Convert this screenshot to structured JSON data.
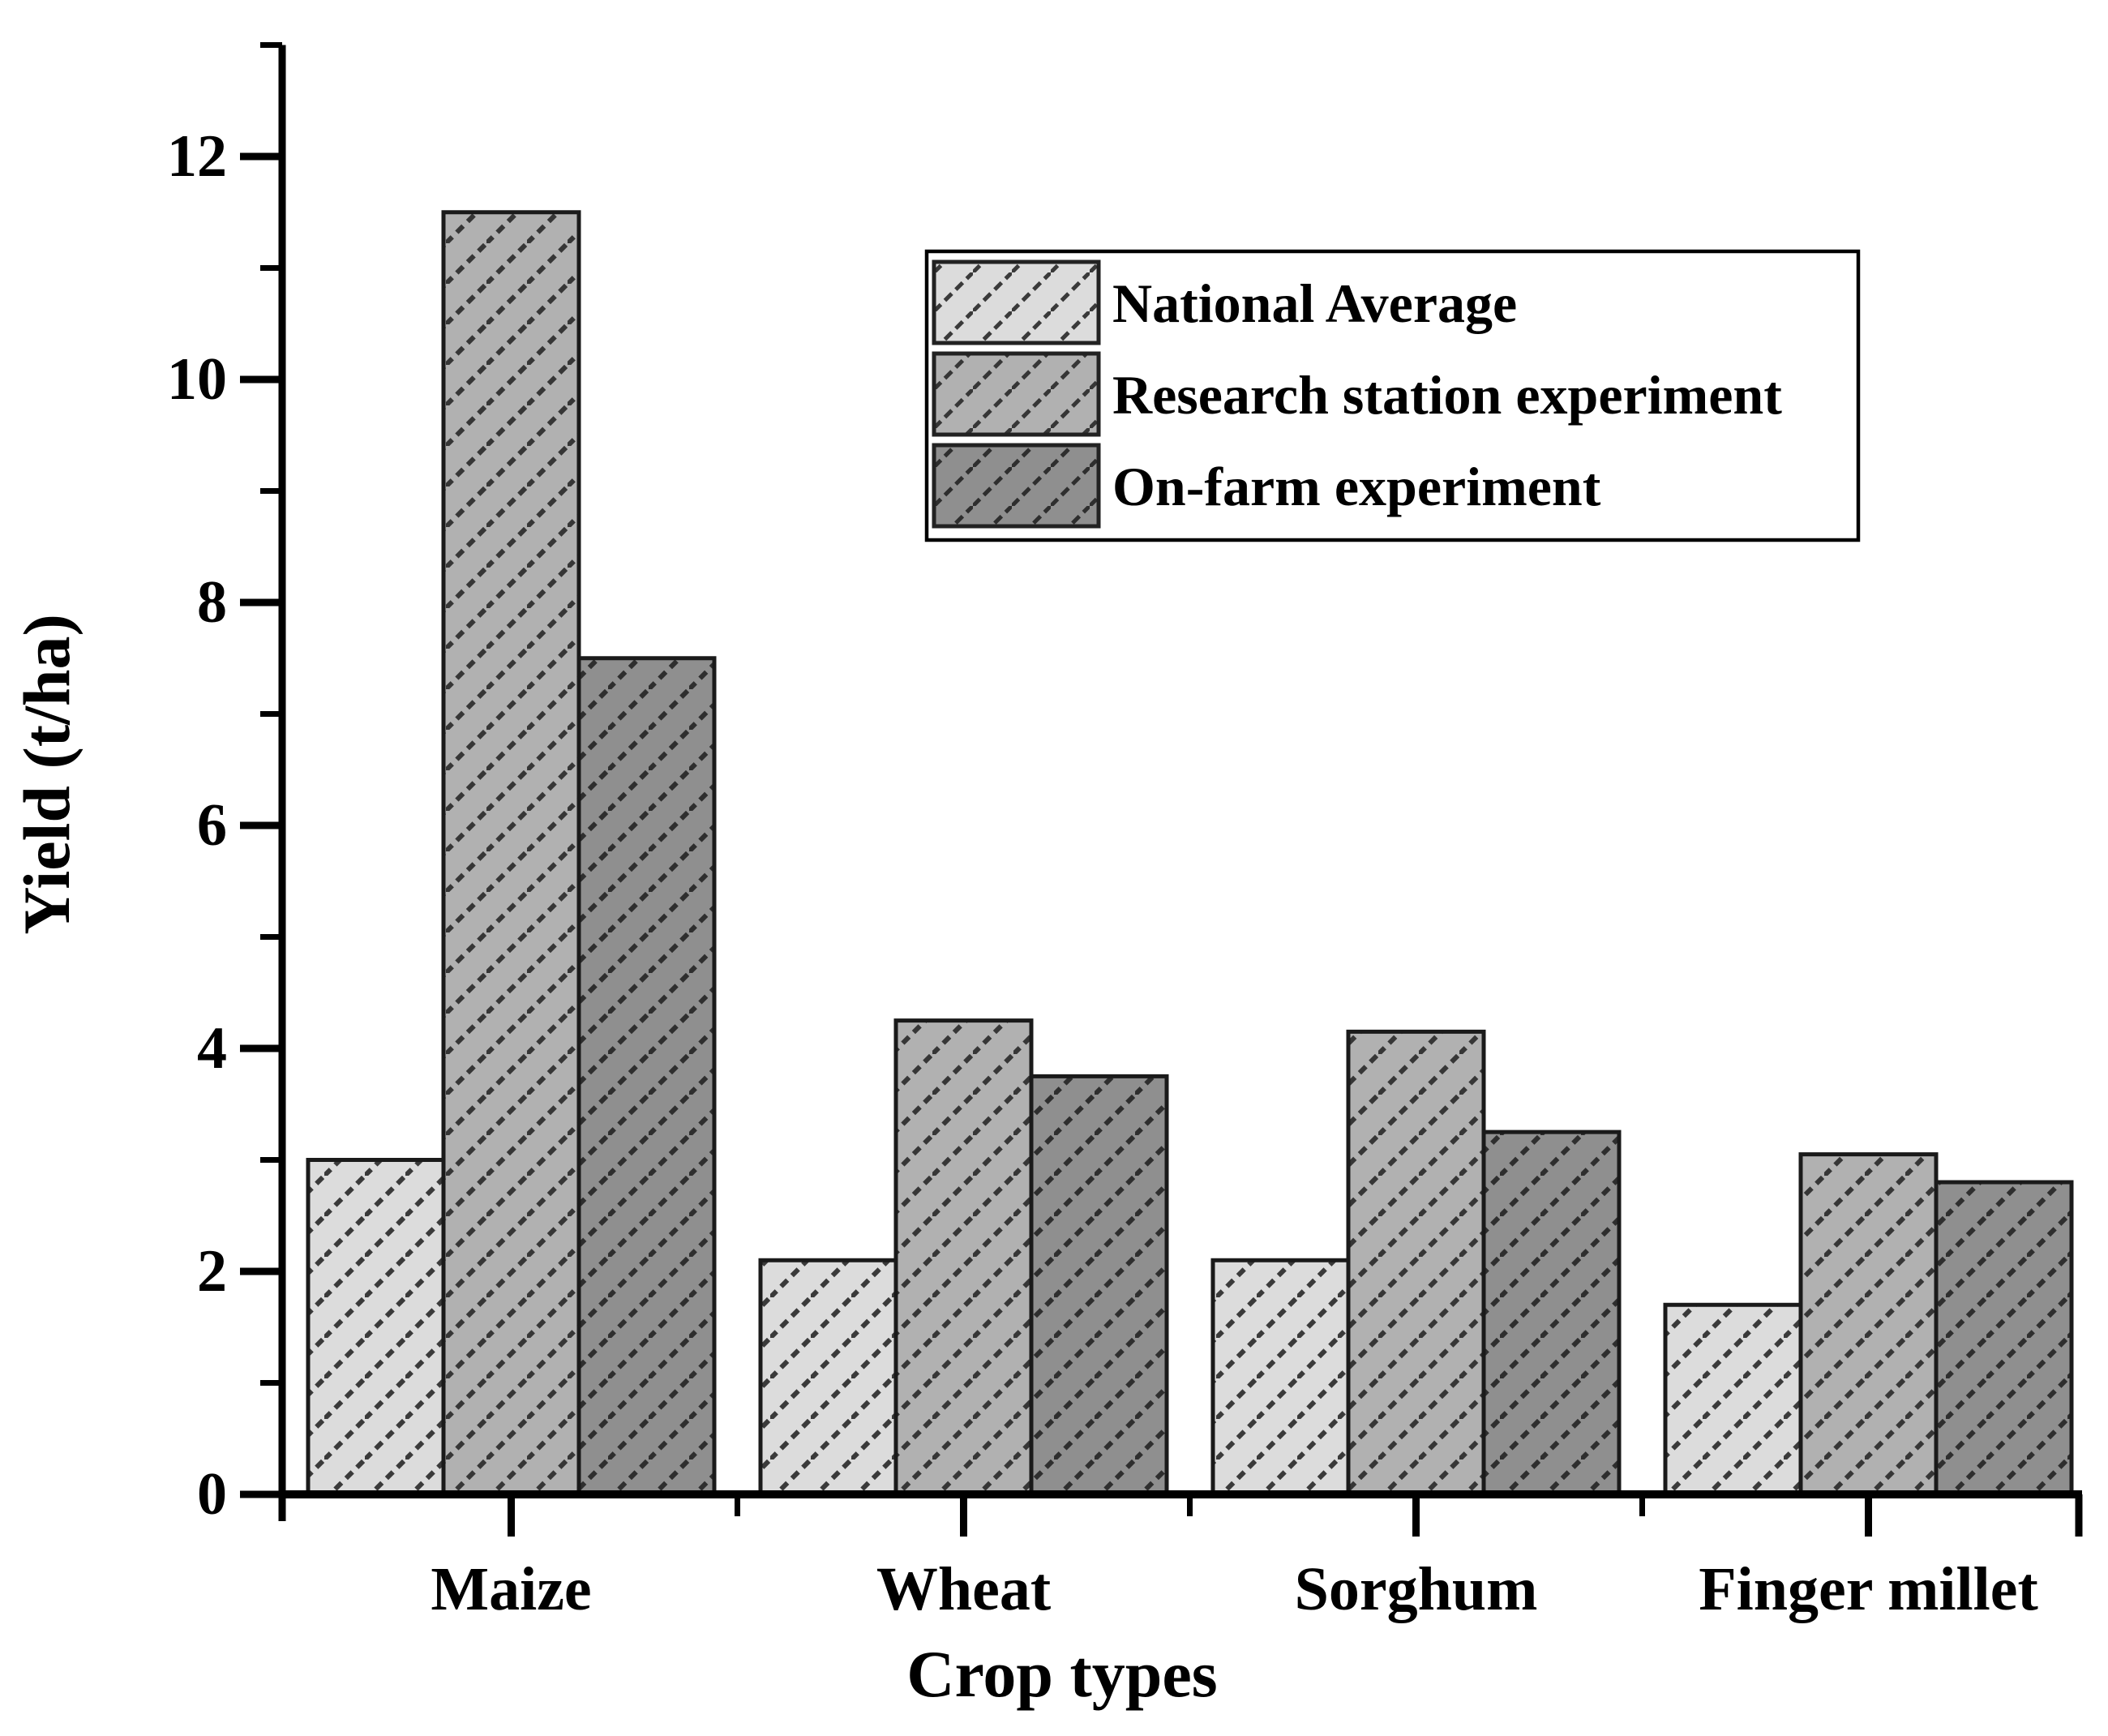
{
  "chart_data": {
    "type": "bar",
    "title": "",
    "xlabel": "Crop types",
    "ylabel": "Yield (t/ha)",
    "categories": [
      "Maize",
      "Wheat",
      "Sorghum",
      "Finger millet"
    ],
    "series": [
      {
        "name": "National Average",
        "values": [
          3.0,
          2.1,
          2.1,
          1.7
        ],
        "fill": "#dcdcdc",
        "hatch_color": "#3a3a3a"
      },
      {
        "name": "Research station experiment",
        "values": [
          11.5,
          4.25,
          4.15,
          3.05
        ],
        "fill": "#b1b1b1",
        "hatch_color": "#363636"
      },
      {
        "name": "On-farm experiment",
        "values": [
          7.5,
          3.75,
          3.25,
          2.8
        ],
        "fill": "#8f8f8f",
        "hatch_color": "#2e2e2e"
      }
    ],
    "ylim": [
      0,
      13
    ],
    "yticks_major": [
      0,
      2,
      4,
      6,
      8,
      10,
      12
    ],
    "yticks_minor": [
      1,
      3,
      5,
      7,
      9,
      11,
      13
    ],
    "hatch_style": "/",
    "grid": false,
    "legend_position": "upper-center",
    "colors": {
      "bar_edge": "#1a1a1a",
      "axis": "#000000",
      "legend_border": "#000000",
      "legend_bg": "#ffffff",
      "background": "#ffffff"
    }
  }
}
